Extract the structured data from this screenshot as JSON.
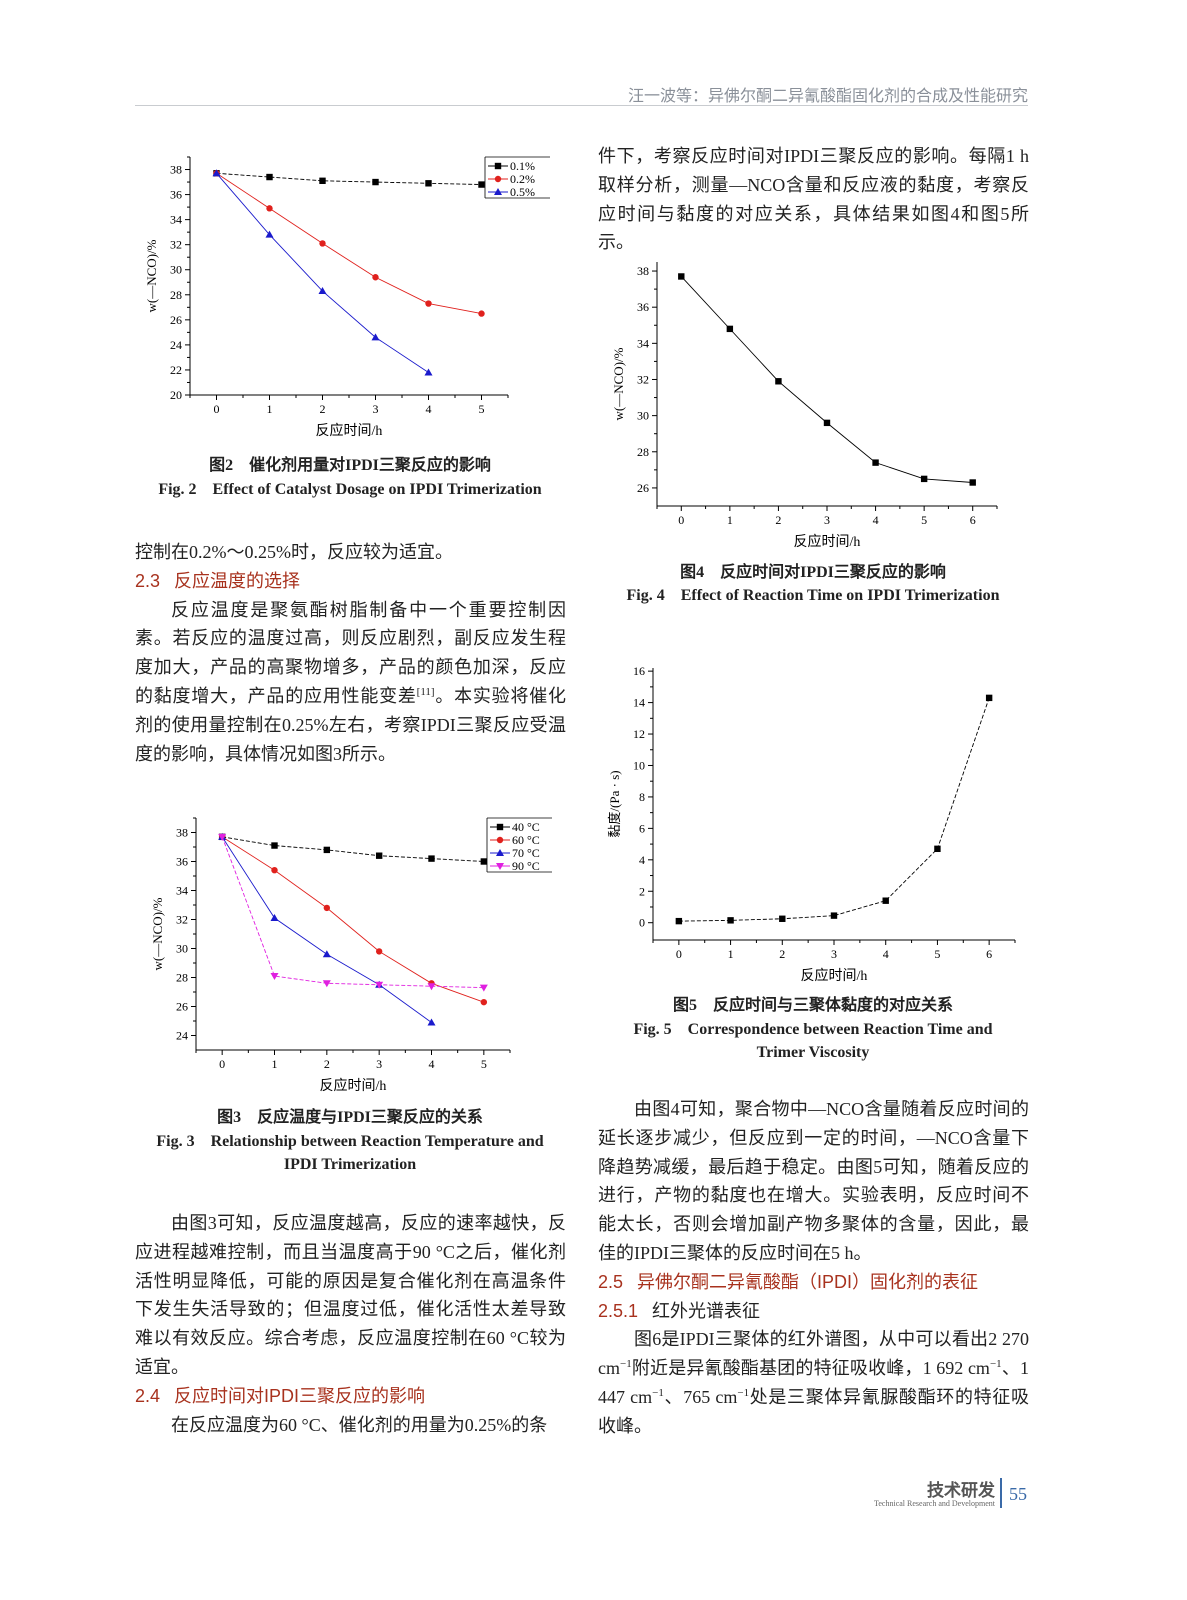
{
  "header": {
    "running_title": "汪一波等：异佛尔酮二异氰酸酯固化剂的合成及性能研究"
  },
  "left": {
    "p_end": "控制在0.2%～0.25%时，反应较为适宜。",
    "h23": {
      "num": "2.3",
      "title": "反应温度的选择"
    },
    "p23_a": "反应温度是聚氨酯树脂制备中一个重要控制因素。若反应的温度过高，则反应剧烈，副反应发生程度加大，产品的高聚物增多，产品的颜色加深，反应的黏度增大，产品的应用性能变差",
    "p23_ref": "[11]",
    "p23_b": "。本实验将催化剂的使用量控制在0.25%左右，考察IPDI三聚反应受温度的影响，具体情况如图3所示。",
    "p_fig3": "由图3可知，反应温度越高，反应的速率越快，反应进程越难控制，而且当温度高于90 °C之后，催化剂活性明显降低，可能的原因是复合催化剂在高温条件下发生失活导致的；但温度过低，催化活性太差导致难以有效反应。综合考虑，反应温度控制在60 °C较为适宜。",
    "h24": {
      "num": "2.4",
      "title": "反应时间对IPDI三聚反应的影响"
    },
    "p24": "在反应温度为60 °C、催化剂的用量为0.25%的条"
  },
  "right": {
    "p24_cont": "件下，考察反应时间对IPDI三聚反应的影响。每隔1 h取样分析，测量—NCO含量和反应液的黏度，考察反应时间与黏度的对应关系，具体结果如图4和图5所示。",
    "p_fig45": "由图4可知，聚合物中—NCO含量随着反应时间的延长逐步减少，但反应到一定的时间，—NCO含量下降趋势减缓，最后趋于稳定。由图5可知，随着反应的进行，产物的黏度也在增大。实验表明，反应时间不能太长，否则会增加副产物多聚体的含量，因此，最佳的IPDI三聚体的反应时间在5 h。",
    "h25": {
      "num": "2.5",
      "title": "异佛尔酮二异氰酸酯（IPDI）固化剂的表征"
    },
    "h251": {
      "num": "2.5.1",
      "title": "红外光谱表征"
    },
    "p251_a": "图6是IPDI三聚体的红外谱图，从中可以看出2 270 cm",
    "sup": "−1",
    "p251_b": "附近是异氰酸酯基团的特征吸收峰，1 692 cm",
    "p251_c": "、1 447 cm",
    "p251_d": "、765 cm",
    "p251_e": "处是三聚体异氰脲酸酯环的特征吸收峰。"
  },
  "captions": {
    "fig2_cn": "图2　催化剂用量对IPDI三聚反应的影响",
    "fig2_en": "Fig. 2　Effect of Catalyst Dosage on IPDI Trimerization",
    "fig3_cn": "图3　反应温度与IPDI三聚反应的关系",
    "fig3_en1": "Fig. 3　Relationship between Reaction Temperature and",
    "fig3_en2": "IPDI Trimerization",
    "fig4_cn": "图4　反应时间对IPDI三聚反应的影响",
    "fig4_en": "Fig. 4　Effect of Reaction Time on IPDI Trimerization",
    "fig5_cn": "图5　反应时间与三聚体黏度的对应关系",
    "fig5_en1": "Fig. 5　Correspondence between Reaction Time and",
    "fig5_en2": "Trimer Viscosity"
  },
  "footer": {
    "section_cn": "技术研发",
    "section_en": "Technical Research and Development",
    "page": "55"
  },
  "chart_data": [
    {
      "id": "fig2",
      "type": "line",
      "xlabel": "反应时间/h",
      "ylabel": "w(—NCO)/%",
      "xlim": [
        -0.5,
        5.5
      ],
      "ylim": [
        20,
        39
      ],
      "xticks": [
        0,
        1,
        2,
        3,
        4,
        5
      ],
      "yticks": [
        20,
        22,
        24,
        26,
        28,
        30,
        32,
        34,
        36,
        38
      ],
      "grid": false,
      "legend": "top-right",
      "series": [
        {
          "name": "0.1%",
          "color": "#000000",
          "marker": "square",
          "dash": true,
          "x": [
            0,
            1,
            2,
            3,
            4,
            5
          ],
          "y": [
            37.7,
            37.4,
            37.1,
            37.0,
            36.9,
            36.8
          ]
        },
        {
          "name": "0.2%",
          "color": "#e0211d",
          "marker": "circle",
          "dash": false,
          "x": [
            0,
            1,
            2,
            3,
            4,
            5
          ],
          "y": [
            37.7,
            34.9,
            32.1,
            29.4,
            27.3,
            26.5
          ]
        },
        {
          "name": "0.5%",
          "color": "#1a1acc",
          "marker": "triangle",
          "dash": false,
          "x": [
            0,
            1,
            2,
            3,
            4
          ],
          "y": [
            37.7,
            32.8,
            28.3,
            24.6,
            21.8
          ]
        }
      ]
    },
    {
      "id": "fig3",
      "type": "line",
      "xlabel": "反应时间/h",
      "ylabel": "w(—NCO)/%",
      "xlim": [
        -0.5,
        5.5
      ],
      "ylim": [
        23,
        39
      ],
      "xticks": [
        0,
        1,
        2,
        3,
        4,
        5
      ],
      "yticks": [
        24,
        26,
        28,
        30,
        32,
        34,
        36,
        38
      ],
      "grid": false,
      "legend": "top-right",
      "series": [
        {
          "name": "40 °C",
          "color": "#000000",
          "marker": "square",
          "dash": true,
          "x": [
            0,
            1,
            2,
            3,
            4,
            5
          ],
          "y": [
            37.7,
            37.1,
            36.8,
            36.4,
            36.2,
            36.0
          ]
        },
        {
          "name": "60 °C",
          "color": "#e0211d",
          "marker": "circle",
          "dash": false,
          "x": [
            0,
            1,
            2,
            3,
            4,
            5
          ],
          "y": [
            37.7,
            35.4,
            32.8,
            29.8,
            27.6,
            26.3
          ]
        },
        {
          "name": "70 °C",
          "color": "#1a1acc",
          "marker": "triangle",
          "dash": false,
          "x": [
            0,
            1,
            2,
            3,
            4
          ],
          "y": [
            37.7,
            32.1,
            29.6,
            27.5,
            24.9
          ]
        },
        {
          "name": "90 °C",
          "color": "#e020e0",
          "marker": "triangle-down",
          "dash": true,
          "x": [
            0,
            1,
            2,
            3,
            4,
            5
          ],
          "y": [
            37.7,
            28.1,
            27.6,
            27.5,
            27.4,
            27.3
          ]
        }
      ]
    },
    {
      "id": "fig4",
      "type": "line",
      "xlabel": "反应时间/h",
      "ylabel": "w(—NCO)/%",
      "xlim": [
        -0.5,
        6.5
      ],
      "ylim": [
        25,
        38.5
      ],
      "xticks": [
        0,
        1,
        2,
        3,
        4,
        5,
        6
      ],
      "yticks": [
        26,
        28,
        30,
        32,
        34,
        36,
        38
      ],
      "grid": false,
      "series": [
        {
          "color": "#000000",
          "marker": "square",
          "dash": false,
          "x": [
            0,
            1,
            2,
            3,
            4,
            5,
            6
          ],
          "y": [
            37.7,
            34.8,
            31.9,
            29.6,
            27.4,
            26.5,
            26.3
          ]
        }
      ]
    },
    {
      "id": "fig5",
      "type": "line",
      "xlabel": "反应时间/h",
      "ylabel": "黏度/(Pa · s)",
      "xlim": [
        -0.5,
        6.5
      ],
      "ylim": [
        -1.1,
        16.2
      ],
      "xticks": [
        0,
        1,
        2,
        3,
        4,
        5,
        6
      ],
      "yticks": [
        0,
        2,
        4,
        6,
        8,
        10,
        12,
        14,
        16
      ],
      "grid": false,
      "series": [
        {
          "color": "#000000",
          "marker": "square",
          "dash": true,
          "x": [
            0,
            1,
            2,
            3,
            4,
            5,
            6
          ],
          "y": [
            0.1,
            0.15,
            0.25,
            0.45,
            1.4,
            4.7,
            14.3
          ]
        }
      ]
    }
  ]
}
